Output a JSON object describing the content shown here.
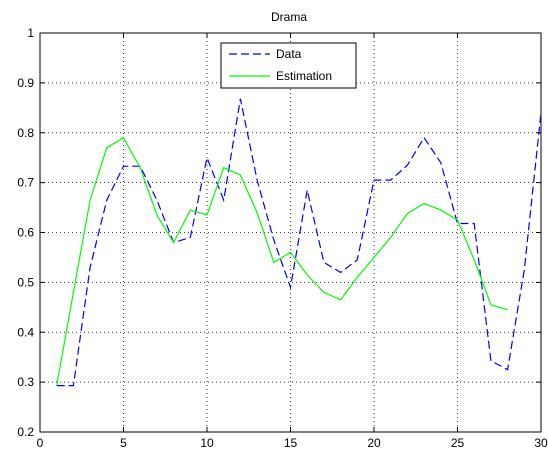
{
  "chart_data": {
    "type": "line",
    "title": "Drama",
    "xlabel": "",
    "ylabel": "",
    "xlim": [
      0,
      30
    ],
    "ylim": [
      0.2,
      1
    ],
    "xticks": [
      "0",
      "5",
      "10",
      "15",
      "20",
      "25",
      "30"
    ],
    "yticks": [
      "0.2",
      "0.3",
      "0.4",
      "0.5",
      "0.6",
      "0.7",
      "0.8",
      "0.9",
      "1"
    ],
    "grid": true,
    "legend_position": "top-center",
    "series": [
      {
        "name": "Data",
        "color": "#0000ff",
        "style": "dashed",
        "x": [
          1,
          2,
          3,
          4,
          5,
          6,
          7,
          8,
          9,
          10,
          11,
          12,
          13,
          14,
          15,
          16,
          17,
          18,
          19,
          20,
          21,
          22,
          23,
          24,
          25,
          26,
          27,
          28,
          29,
          30
        ],
        "values": [
          0.293,
          0.293,
          0.53,
          0.665,
          0.733,
          0.733,
          0.665,
          0.58,
          0.59,
          0.75,
          0.665,
          0.868,
          0.705,
          0.585,
          0.49,
          0.685,
          0.54,
          0.52,
          0.545,
          0.705,
          0.705,
          0.735,
          0.79,
          0.74,
          0.618,
          0.618,
          0.343,
          0.325,
          0.525,
          0.84
        ]
      },
      {
        "name": "Estimation",
        "color": "#00ff00",
        "style": "solid",
        "x": [
          1,
          2,
          3,
          4,
          5,
          6,
          7,
          8,
          9,
          10,
          11,
          12,
          13,
          14,
          15,
          16,
          17,
          18,
          19,
          20,
          21,
          22,
          23,
          24,
          25,
          26,
          27,
          28
        ],
        "values": [
          0.293,
          0.48,
          0.665,
          0.77,
          0.79,
          0.73,
          0.635,
          0.58,
          0.645,
          0.635,
          0.73,
          0.715,
          0.64,
          0.54,
          0.56,
          0.515,
          0.48,
          0.465,
          0.51,
          0.55,
          0.59,
          0.638,
          0.658,
          0.645,
          0.625,
          0.545,
          0.455,
          0.445
        ]
      }
    ]
  }
}
